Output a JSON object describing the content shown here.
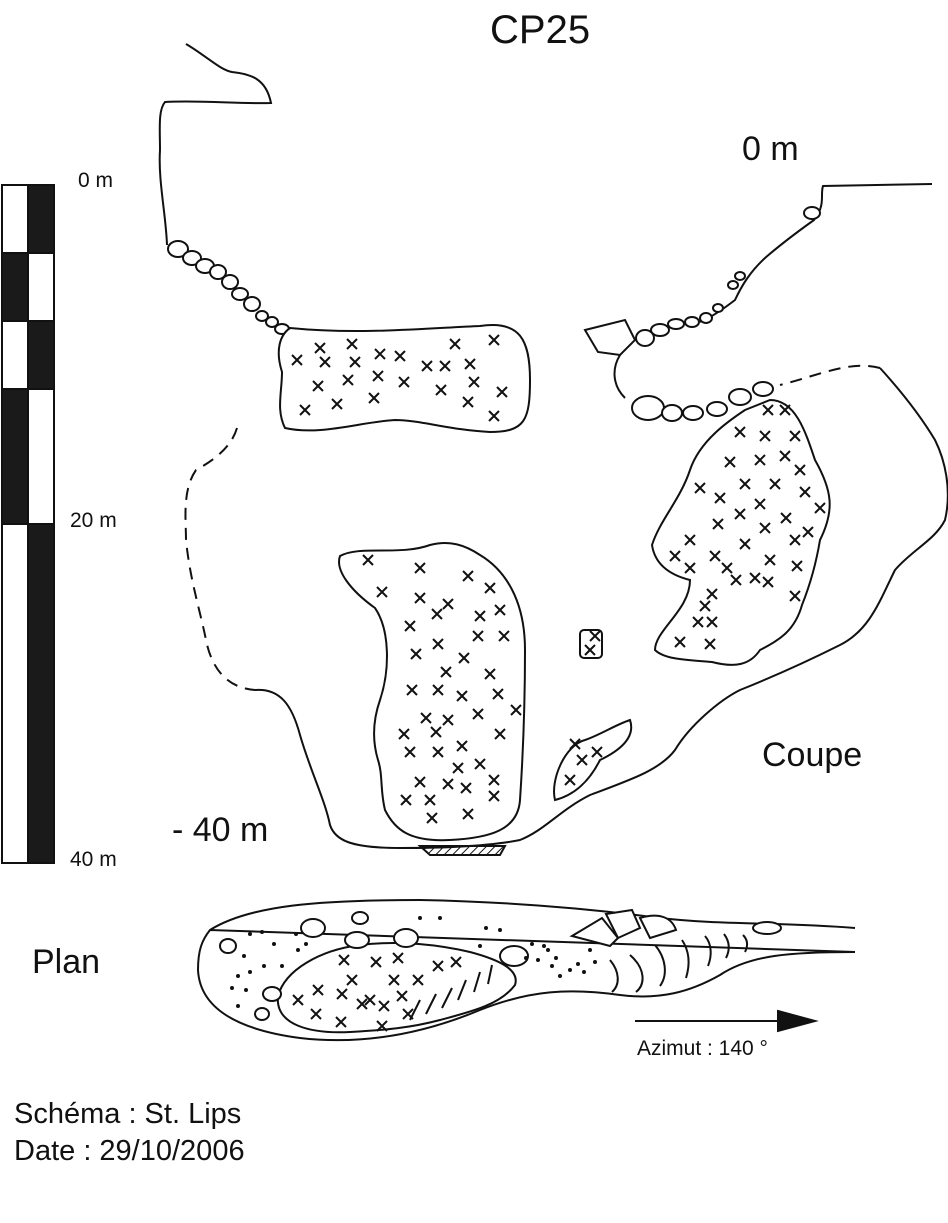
{
  "title": "CP25",
  "section": {
    "label": "Coupe",
    "depth_top": "0 m",
    "depth_bottom": "- 40 m"
  },
  "plan": {
    "label": "Plan"
  },
  "scale_bar": {
    "labels": [
      "0 m",
      "20 m",
      "40 m"
    ]
  },
  "azimut": "Azimut : 140 °",
  "credits": {
    "schema": "Schéma : St. Lips",
    "date": "Date : 29/10/2006"
  },
  "colors": {
    "ink": "#111111",
    "paper": "#ffffff"
  }
}
